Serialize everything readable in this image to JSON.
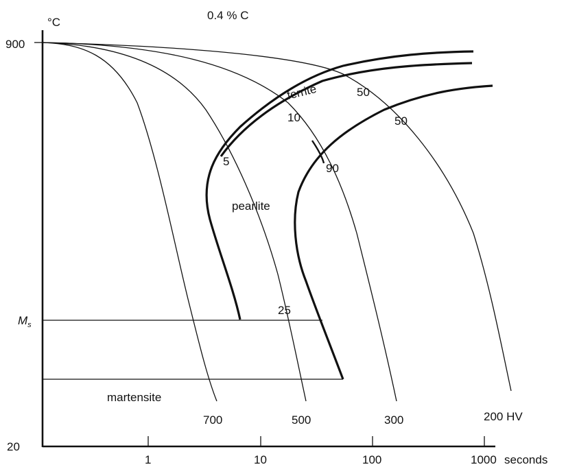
{
  "title": "0.4 % C",
  "y_unit": "°C",
  "y_ticks": {
    "top": "900",
    "bottom": "20",
    "ms": "M",
    "ms_sub": "s"
  },
  "x_ticks": [
    "1",
    "10",
    "100",
    "1000"
  ],
  "x_unit": "seconds",
  "regions": {
    "ferrite": "ferrite",
    "pearlite": "pearlite",
    "martensite": "martensite"
  },
  "percent_labels": [
    "5",
    "10",
    "50",
    "90",
    "50",
    "25"
  ],
  "hardness_labels": [
    "700",
    "500",
    "300",
    "200 HV"
  ]
}
